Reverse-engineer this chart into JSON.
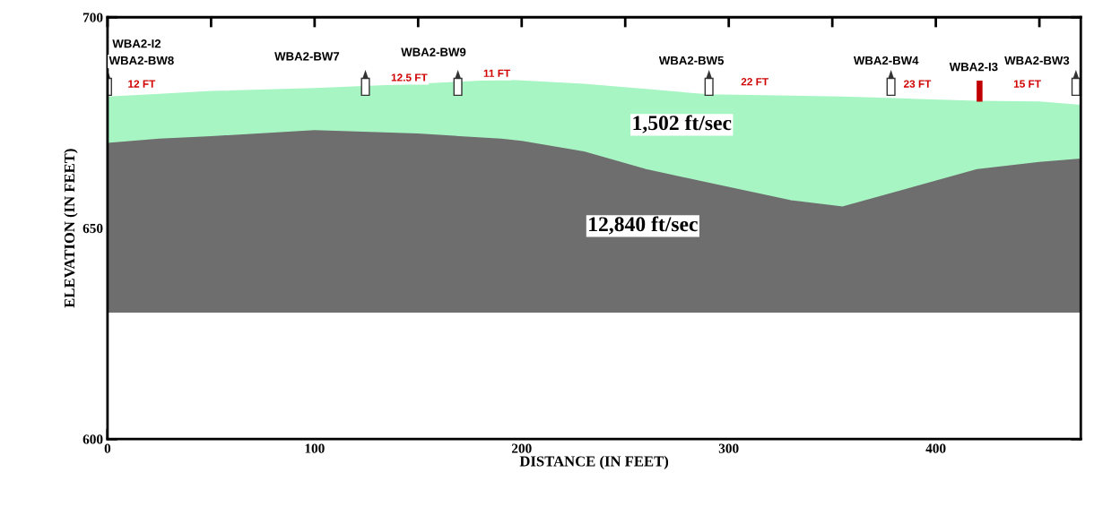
{
  "chart_data": {
    "type": "area",
    "xlabel": "DISTANCE (IN FEET)",
    "ylabel": "ELEVATION (IN FEET)",
    "x": [
      0,
      25,
      50,
      100,
      150,
      190,
      200,
      230,
      260,
      290,
      330,
      355,
      380,
      420,
      450,
      470
    ],
    "series": [
      {
        "color": "#a8f5c4",
        "values": [
          681,
          681.6,
          682.3,
          683,
          684,
          685,
          684.8,
          684,
          682.8,
          681.5,
          681.2,
          681,
          680.6,
          680,
          679.8,
          679
        ]
      },
      {
        "color": "#6e6e6e",
        "values": [
          670,
          671,
          671.6,
          673,
          672.2,
          671,
          670.5,
          668,
          663.8,
          660.6,
          656.4,
          654.9,
          658.3,
          663.8,
          665.5,
          666.3
        ]
      }
    ],
    "bands": [
      {
        "axis": "y",
        "from": 600,
        "to": 630,
        "color": "#ffffff"
      }
    ],
    "xlim": [
      0,
      470
    ],
    "ylim": [
      600,
      700
    ],
    "xticks": [
      0,
      {
        "value": 50,
        "label": null
      },
      100,
      {
        "value": 150,
        "label": null
      },
      200,
      {
        "value": 250,
        "label": null
      },
      300,
      {
        "value": 350,
        "label": null
      },
      400,
      {
        "value": 450,
        "label": null
      }
    ],
    "yticks": [
      600,
      650,
      700
    ],
    "grid": false,
    "legend": false,
    "annotations": [
      "WBA2-I2",
      "WBA2-BW8",
      "12 FT",
      "WBA2-BW7",
      "12.5 FT",
      "WBA2-BW9",
      "11 FT",
      "WBA2-BW5",
      "22 FT",
      "WBA2-BW4",
      "23 FT",
      "WBA2-I3",
      "WBA2-BW3",
      "15 FT",
      "1,502 ft/sec",
      "12,840 ft/sec"
    ]
  }
}
